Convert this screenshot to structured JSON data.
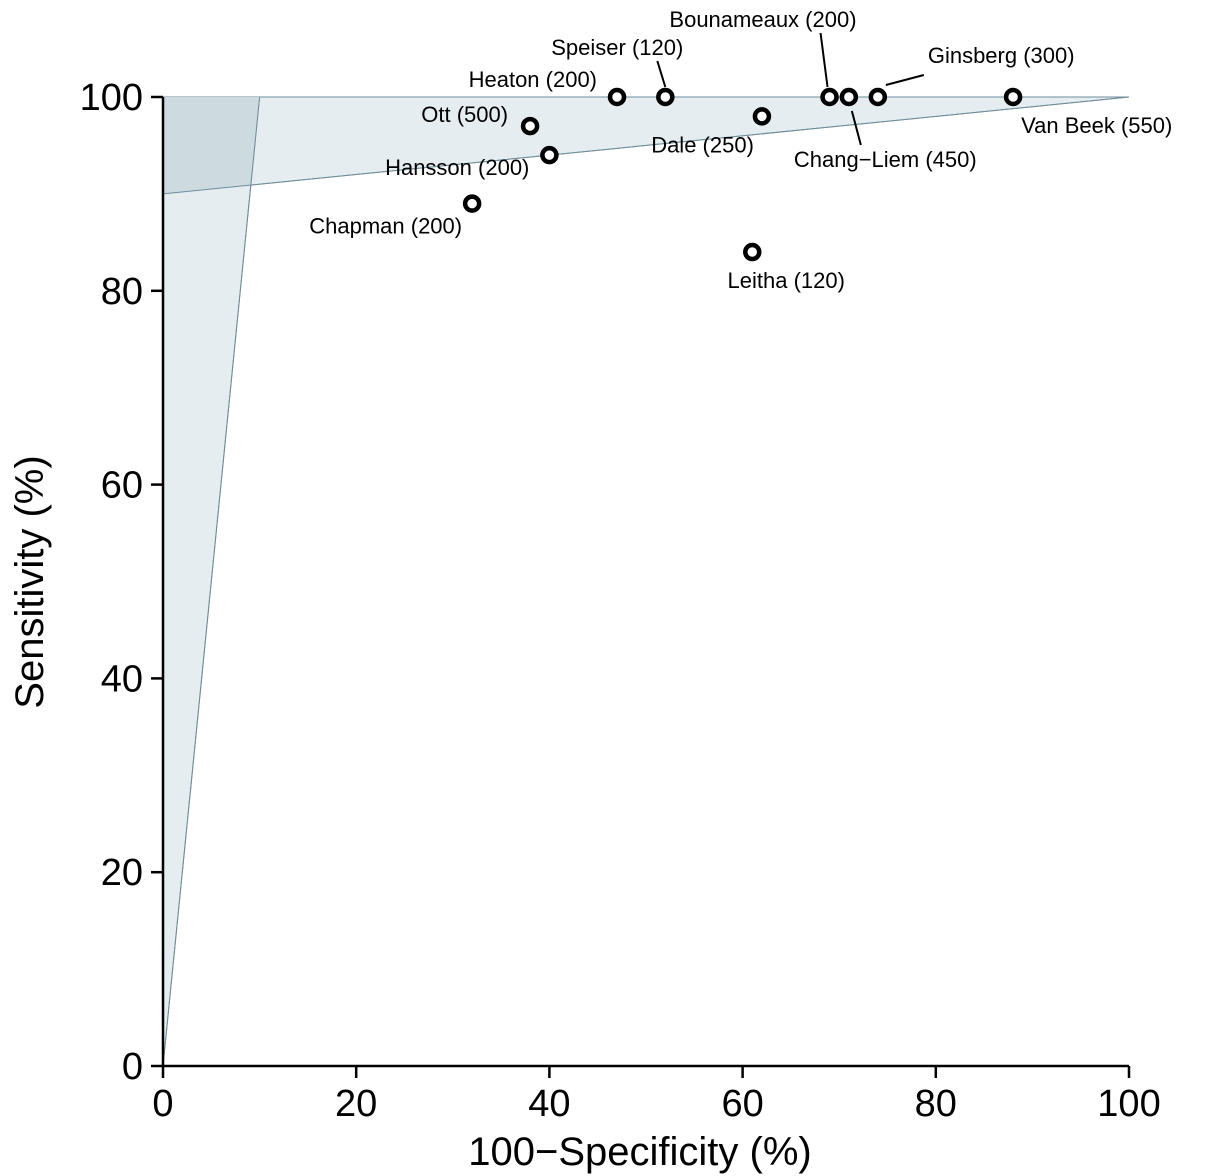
{
  "chart_data": {
    "type": "scatter",
    "xlabel": "100−Specificity (%)",
    "ylabel": "Sensitivity (%)",
    "xlim": [
      0,
      100
    ],
    "ylim": [
      0,
      100
    ],
    "xticks": [
      "0",
      "20",
      "40",
      "60",
      "80",
      "100"
    ],
    "yticks": [
      "0",
      "20",
      "40",
      "60",
      "80",
      "100"
    ],
    "grid": false,
    "regions": {
      "fill_color": "#e6edf0",
      "overlap_color": "#cddbe1",
      "edge_color": "#6f8e9a",
      "high_sensitivity_wedge": [
        [
          0,
          90
        ],
        [
          0,
          100
        ],
        [
          100,
          100
        ]
      ],
      "low_fpr_wedge": [
        [
          0,
          0
        ],
        [
          0,
          100
        ],
        [
          10,
          100
        ]
      ]
    },
    "points": [
      {
        "label": "Van Beek (550)",
        "x": 88,
        "y": 100
      },
      {
        "label": "Ginsberg (300)",
        "x": 74,
        "y": 100
      },
      {
        "label": "Chang−Liem (450)",
        "x": 71,
        "y": 100
      },
      {
        "label": "Bounameaux (200)",
        "x": 69,
        "y": 100
      },
      {
        "label": "Dale (250)",
        "x": 62,
        "y": 98
      },
      {
        "label": "Speiser (120)",
        "x": 52,
        "y": 100
      },
      {
        "label": "Heaton (200)",
        "x": 47,
        "y": 100
      },
      {
        "label": "Ott (500)",
        "x": 38,
        "y": 97
      },
      {
        "label": "Hansson (200)",
        "x": 40,
        "y": 94
      },
      {
        "label": "Chapman (200)",
        "x": 32,
        "y": 89
      },
      {
        "label": "Leitha (120)",
        "x": 61,
        "y": 84
      }
    ]
  }
}
